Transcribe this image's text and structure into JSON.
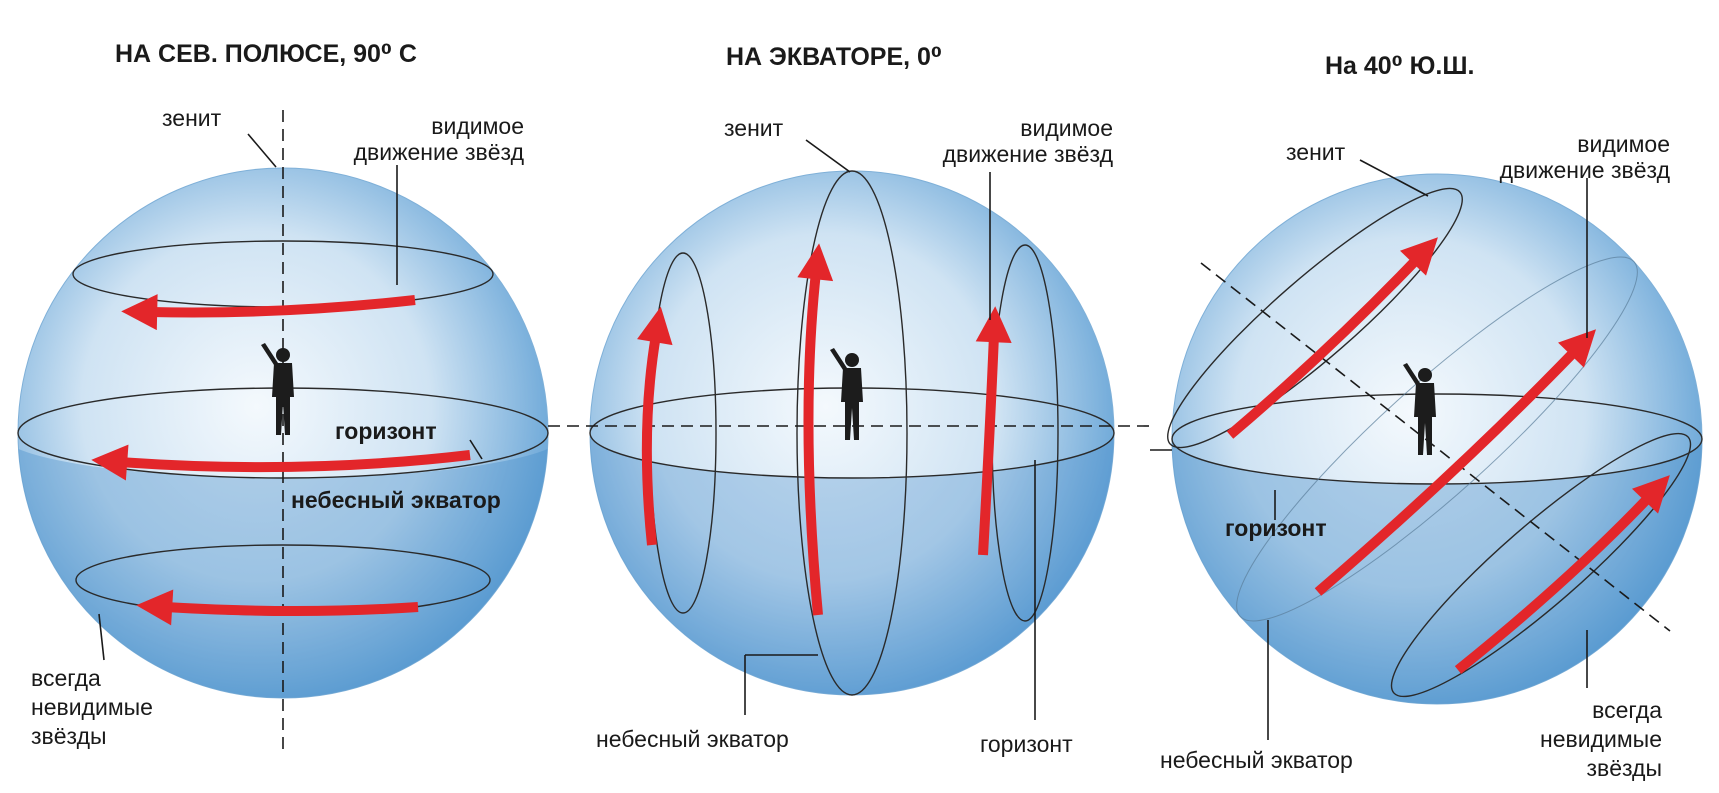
{
  "panels": [
    {
      "title": "НА СЕВ. ПОЛЮСЕ, 90⁰ С",
      "zenith": "зенит",
      "motion": [
        "видимое",
        "движение звёзд"
      ],
      "horizon": "горизонт",
      "equator": "небесный экватор",
      "invisible": [
        "всегда",
        "невидимые",
        "звёзды"
      ]
    },
    {
      "title": "НА ЭКВАТОРЕ, 0⁰",
      "zenith": "зенит",
      "motion": [
        "видимое",
        "движение звёзд"
      ],
      "equator": "небесный экватор",
      "horizon": "горизонт"
    },
    {
      "title": "На 40⁰ Ю.Ш.",
      "zenith": "зенит",
      "motion": [
        "видимое",
        "движение звёзд"
      ],
      "horizon": "горизонт",
      "equator": "небесный экватор",
      "invisible": [
        "всегда",
        "невидимые",
        "звёзды"
      ]
    }
  ]
}
